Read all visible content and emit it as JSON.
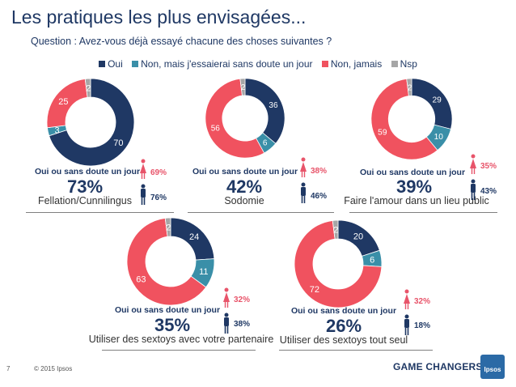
{
  "title": "Les pratiques les plus envisagées...",
  "question": "Question : Avez-vous déjà essayé chacune des choses suivantes ?",
  "colors": {
    "oui": "#1f3864",
    "non_mais": "#3a8fa8",
    "non_jamais": "#f0525f",
    "nsp": "#a6a6a6",
    "female": "#e8546a",
    "male": "#1f3864"
  },
  "chart_data": [
    {
      "type": "pie",
      "title": "Fellation/Cunnilingus",
      "categories": [
        "Oui",
        "Non, mais j'essaierai sans doute un jour",
        "Non, jamais",
        "Nsp"
      ],
      "values": [
        70,
        3,
        25,
        2
      ],
      "summary_label": "Oui ou sans doute un jour",
      "summary_value": "73%",
      "women": "69%",
      "men": "76%"
    },
    {
      "type": "pie",
      "title": "Sodomie",
      "categories": [
        "Oui",
        "Non, mais j'essaierai sans doute un jour",
        "Non, jamais",
        "Nsp"
      ],
      "values": [
        36,
        6,
        56,
        2
      ],
      "summary_label": "Oui ou sans doute un jour",
      "summary_value": "42%",
      "women": "38%",
      "men": "46%"
    },
    {
      "type": "pie",
      "title": "Faire l'amour dans un lieu public",
      "categories": [
        "Oui",
        "Non, mais j'essaierai sans doute un jour",
        "Non, jamais",
        "Nsp"
      ],
      "values": [
        29,
        10,
        59,
        2
      ],
      "summary_label": "Oui ou sans doute un jour",
      "summary_value": "39%",
      "women": "35%",
      "men": "43%"
    },
    {
      "type": "pie",
      "title": "Utiliser des sextoys avec votre partenaire",
      "categories": [
        "Oui",
        "Non, mais j'essaierai sans doute un jour",
        "Non, jamais",
        "Nsp"
      ],
      "values": [
        24,
        11,
        63,
        2
      ],
      "summary_label": "Oui ou sans doute un jour",
      "summary_value": "35%",
      "women": "32%",
      "men": "38%"
    },
    {
      "type": "pie",
      "title": "Utiliser des sextoys tout seul",
      "categories": [
        "Oui",
        "Non, mais j'essaierai sans doute un jour",
        "Non, jamais",
        "Nsp"
      ],
      "values": [
        20,
        6,
        72,
        2
      ],
      "summary_label": "Oui ou sans doute un jour",
      "summary_value": "26%",
      "women": "32%",
      "men": "18%"
    }
  ],
  "legend": [
    "Oui",
    "Non, mais j'essaierai sans doute un jour",
    "Non, jamais",
    "Nsp"
  ],
  "footer": {
    "page_number": "7",
    "copyright": "© 2015 Ipsos",
    "brand": "GAME CHANGERS",
    "logo_text": "Ipsos"
  }
}
